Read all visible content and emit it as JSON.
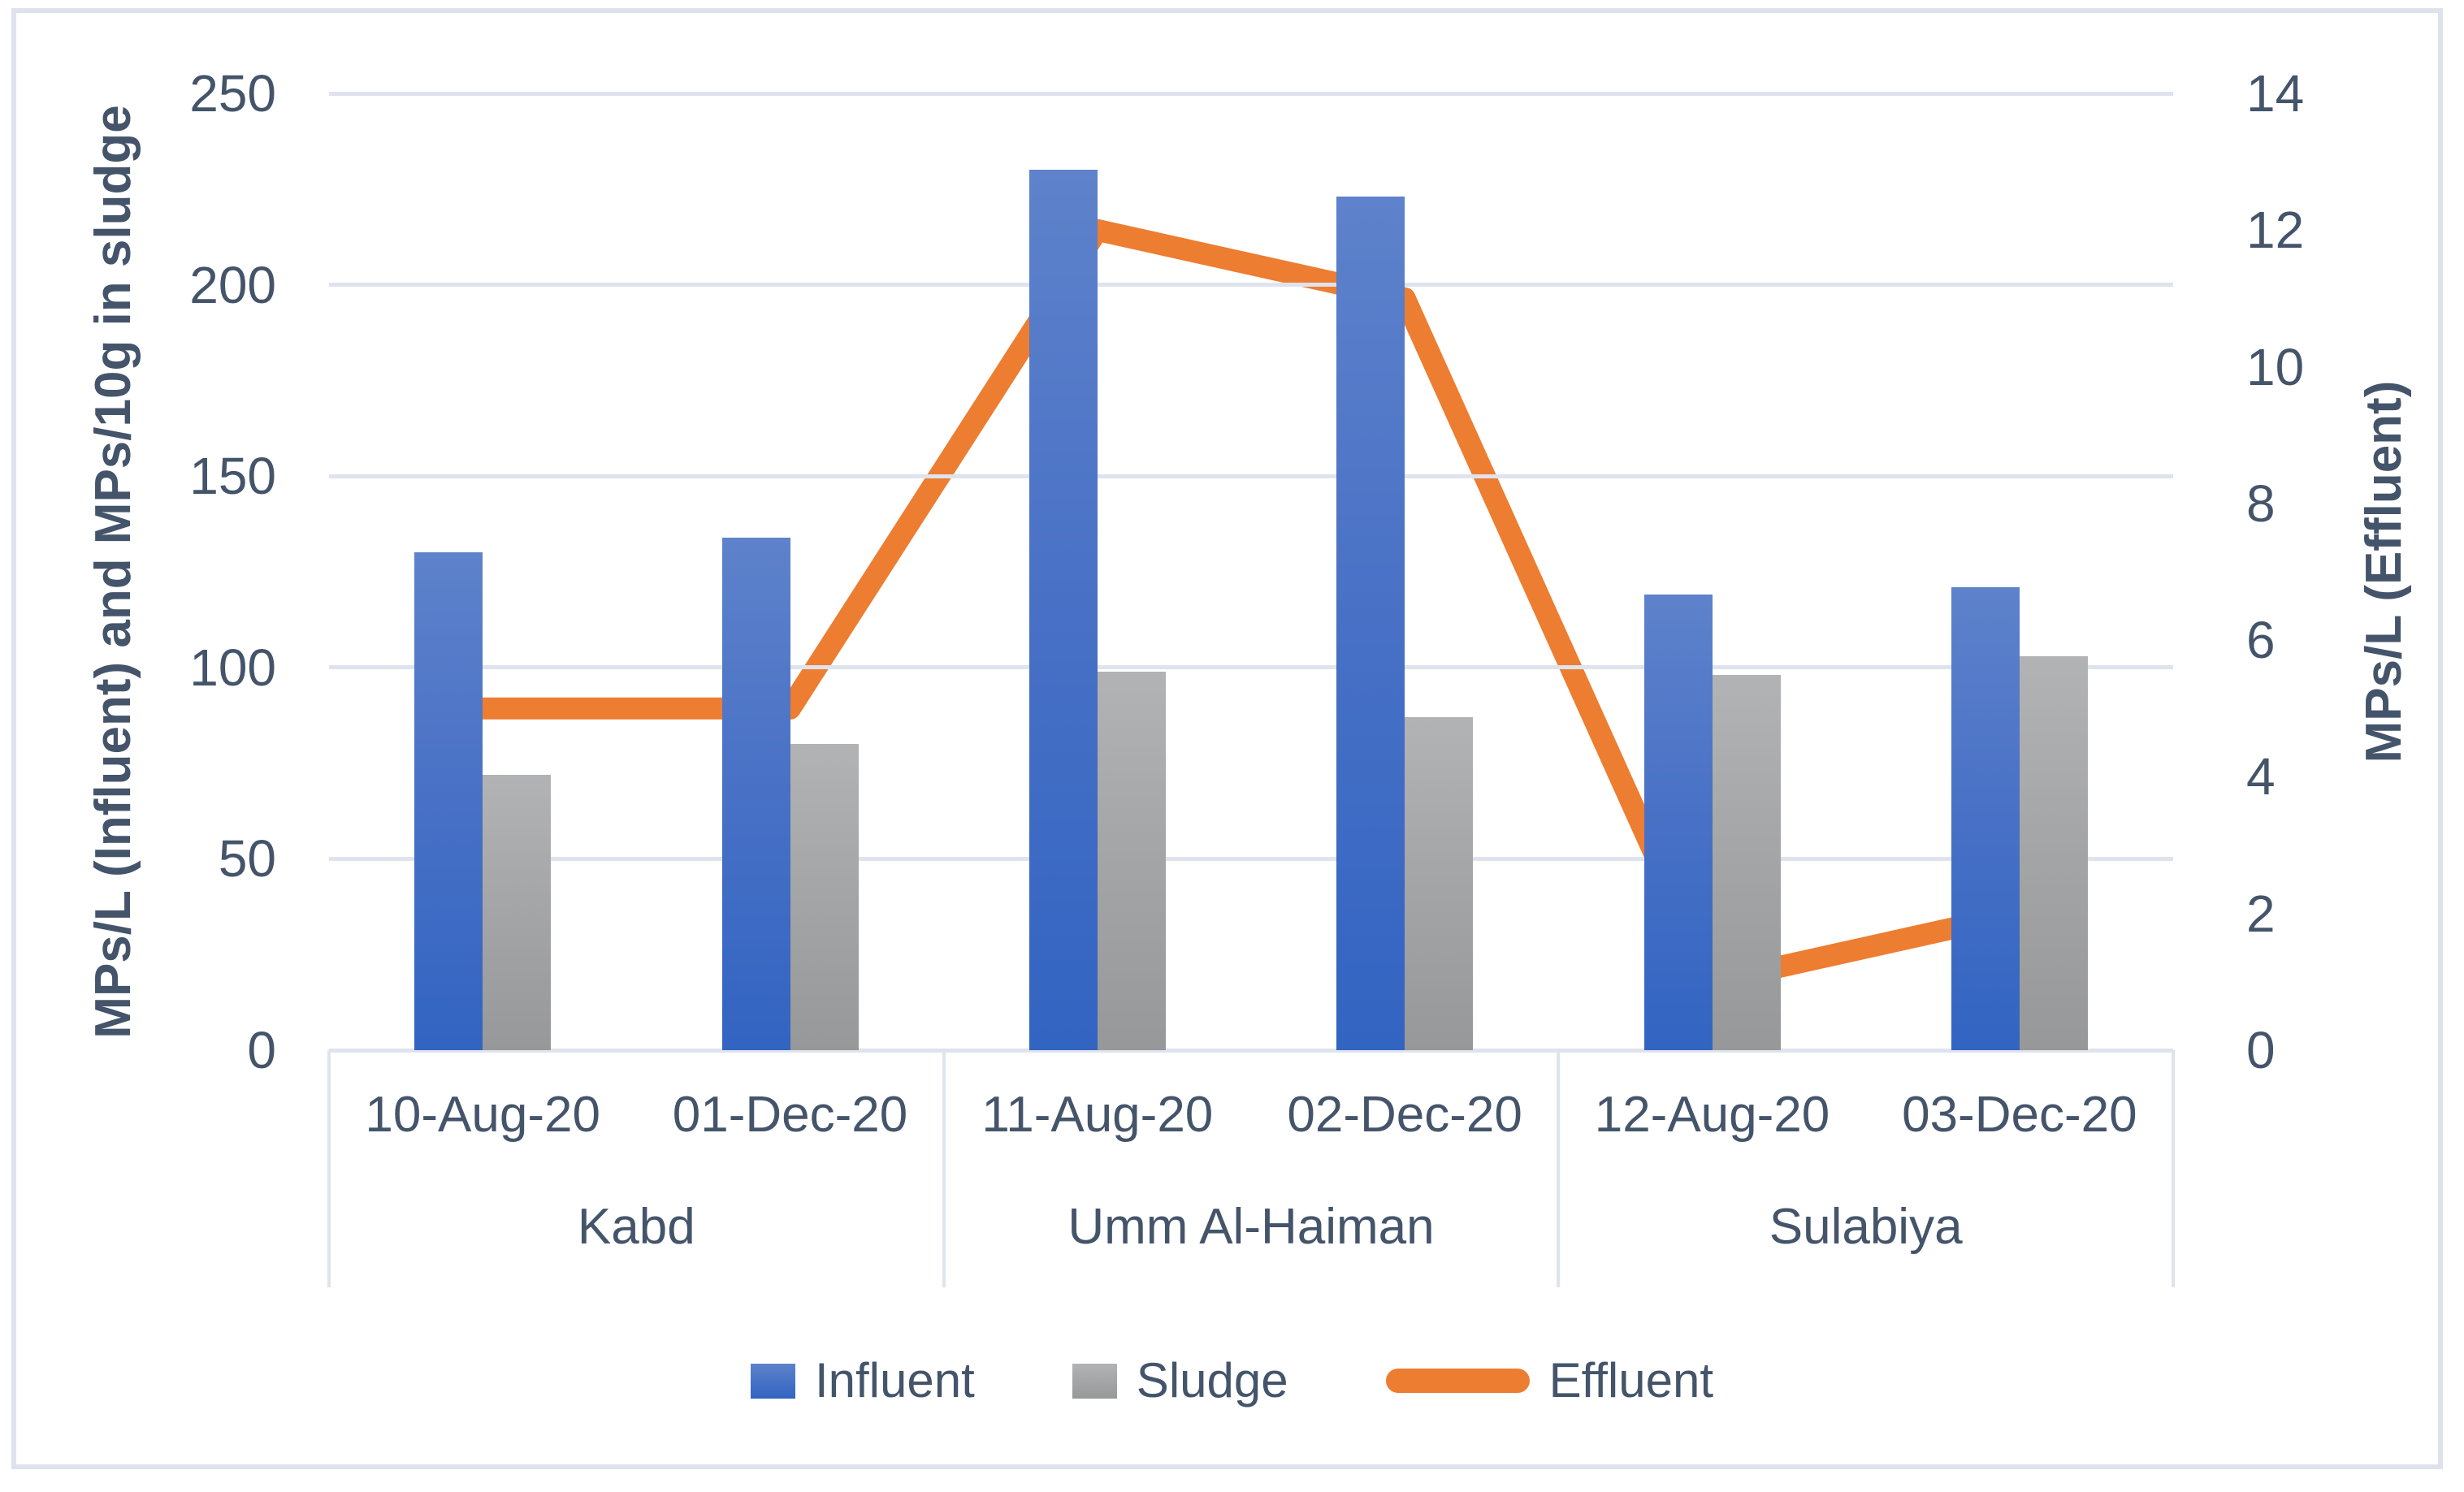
{
  "chart_data": {
    "type": "bar",
    "subtype": "combo-bar-line-dual-axis",
    "categories": [
      "10-Aug-20",
      "01-Dec-20",
      "11-Aug-20",
      "02-Dec-20",
      "12-Aug-20",
      "03-Dec-20"
    ],
    "groups": [
      {
        "label": "Kabd",
        "categories": [
          "10-Aug-20",
          "01-Dec-20"
        ]
      },
      {
        "label": "Umm Al-Haiman",
        "categories": [
          "11-Aug-20",
          "02-Dec-20"
        ]
      },
      {
        "label": "Sulabiya",
        "categories": [
          "12-Aug-20",
          "03-Dec-20"
        ]
      }
    ],
    "series": [
      {
        "name": "Influent",
        "type": "bar",
        "axis": "left",
        "color": "#4472C4",
        "values": [
          130,
          134,
          230,
          223,
          119,
          121
        ]
      },
      {
        "name": "Sludge",
        "type": "bar",
        "axis": "left",
        "color": "#A5A5A5",
        "values": [
          72,
          80,
          99,
          87,
          98,
          103
        ]
      },
      {
        "name": "Effluent",
        "type": "line",
        "axis": "right",
        "color": "#ED7D31",
        "values": [
          5,
          5,
          12,
          11,
          1,
          2
        ]
      }
    ],
    "left_axis": {
      "title": "MPs/L (Influent) and MPs/10g in sludge",
      "min": 0,
      "max": 250,
      "step": 50,
      "ticks": [
        0,
        50,
        100,
        150,
        200,
        250
      ]
    },
    "right_axis": {
      "title": "MPs/L (Effluent)",
      "min": 0,
      "max": 14,
      "step": 2,
      "ticks": [
        0,
        2,
        4,
        6,
        8,
        10,
        12,
        14
      ]
    },
    "legend": [
      "Influent",
      "Sludge",
      "Effluent"
    ],
    "legend_position": "bottom",
    "grid": true
  },
  "colors": {
    "text": "#44546A",
    "gridline": "#dfe3ed",
    "frame_border": "#dde2ec",
    "influent_bar": "#4472C4",
    "sludge_bar": "#A5A5A5",
    "effluent_line": "#ED7D31",
    "background": "#ffffff"
  }
}
